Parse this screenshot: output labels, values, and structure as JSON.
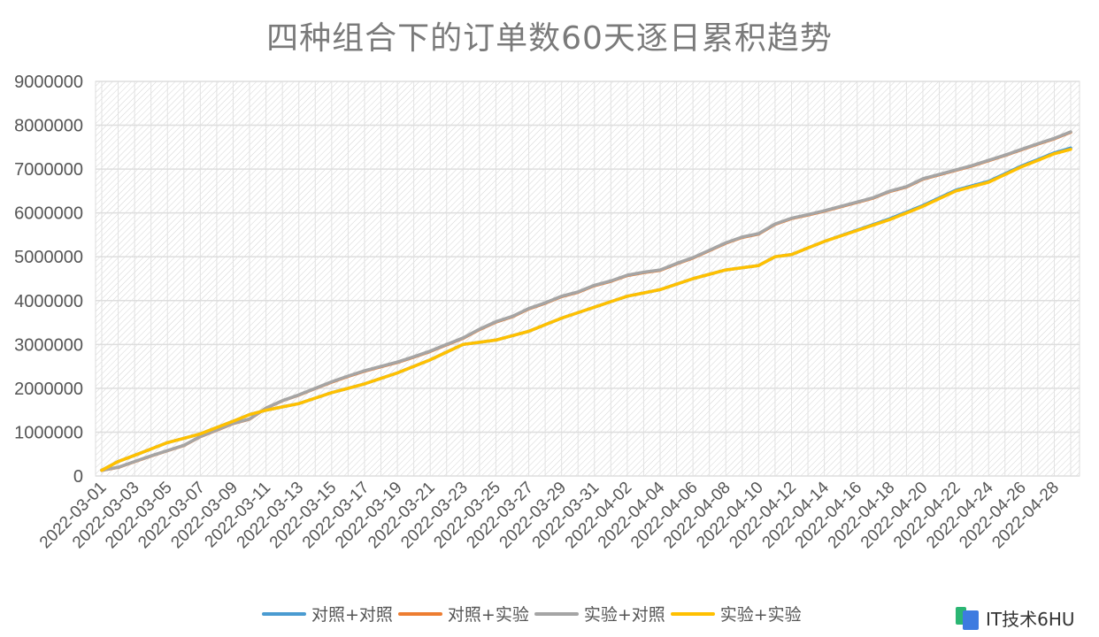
{
  "chart_data": {
    "type": "line",
    "title": "四种组合下的订单数60天逐日累积趋势",
    "xlabel": "",
    "ylabel": "",
    "ylim": [
      0,
      9000000
    ],
    "yticks": [
      "0",
      "1000000",
      "2000000",
      "3000000",
      "4000000",
      "5000000",
      "6000000",
      "7000000",
      "8000000",
      "9000000"
    ],
    "grid": true,
    "legend_position": "bottom",
    "x": [
      "2022-03-01",
      "2022-03-02",
      "2022-03-03",
      "2022-03-04",
      "2022-03-05",
      "2022-03-06",
      "2022-03-07",
      "2022-03-08",
      "2022-03-09",
      "2022-03-10",
      "2022-03-11",
      "2022-03-12",
      "2022-03-13",
      "2022-03-14",
      "2022-03-15",
      "2022-03-16",
      "2022-03-17",
      "2022-03-18",
      "2022-03-19",
      "2022-03-20",
      "2022-03-21",
      "2022-03-22",
      "2022-03-23",
      "2022-03-24",
      "2022-03-25",
      "2022-03-26",
      "2022-03-27",
      "2022-03-28",
      "2022-03-29",
      "2022-03-30",
      "2022-03-31",
      "2022-04-01",
      "2022-04-02",
      "2022-04-03",
      "2022-04-04",
      "2022-04-05",
      "2022-04-06",
      "2022-04-07",
      "2022-04-08",
      "2022-04-09",
      "2022-04-10",
      "2022-04-11",
      "2022-04-12",
      "2022-04-13",
      "2022-04-14",
      "2022-04-15",
      "2022-04-16",
      "2022-04-17",
      "2022-04-18",
      "2022-04-19",
      "2022-04-20",
      "2022-04-21",
      "2022-04-22",
      "2022-04-23",
      "2022-04-24",
      "2022-04-25",
      "2022-04-26",
      "2022-04-27",
      "2022-04-28",
      "2022-04-29"
    ],
    "series": [
      {
        "name": "对照+对照",
        "color": "#4a9bd1",
        "values": [
          130000,
          330000,
          470000,
          615000,
          760000,
          860000,
          960000,
          1105000,
          1250000,
          1400000,
          1500000,
          1575000,
          1650000,
          1775000,
          1900000,
          2000000,
          2100000,
          2225000,
          2350000,
          2500000,
          2650000,
          2825000,
          3000000,
          3050000,
          3100000,
          3200000,
          3300000,
          3450000,
          3600000,
          3725000,
          3850000,
          3975000,
          4100000,
          4175000,
          4250000,
          4375000,
          4500000,
          4600000,
          4700000,
          4750000,
          4800000,
          5000000,
          5050000,
          5200000,
          5350000,
          5480000,
          5610000,
          5740000,
          5870000,
          6020000,
          6170000,
          6345000,
          6520000,
          6620000,
          6720000,
          6895000,
          7070000,
          7220000,
          7370000,
          7480000
        ]
      },
      {
        "name": "对照+实验",
        "color": "#ed7d31",
        "values": [
          130000,
          195000,
          325000,
          455000,
          575000,
          695000,
          895000,
          1045000,
          1195000,
          1295000,
          1545000,
          1715000,
          1845000,
          1995000,
          2140000,
          2270000,
          2390000,
          2490000,
          2590000,
          2710000,
          2840000,
          2990000,
          3140000,
          3340000,
          3510000,
          3630000,
          3810000,
          3940000,
          4090000,
          4190000,
          4340000,
          4440000,
          4570000,
          4640000,
          4690000,
          4840000,
          4970000,
          5140000,
          5310000,
          5440000,
          5520000,
          5740000,
          5870000,
          5950000,
          6040000,
          6140000,
          6240000,
          6340000,
          6490000,
          6590000,
          6770000,
          6870000,
          6970000,
          7070000,
          7190000,
          7310000,
          7440000,
          7570000,
          7690000,
          7840000
        ]
      },
      {
        "name": "实验+对照",
        "color": "#a5a5a5",
        "values": [
          130000,
          200000,
          330000,
          460000,
          580000,
          700000,
          900000,
          1050000,
          1200000,
          1300000,
          1550000,
          1720000,
          1850000,
          2000000,
          2150000,
          2280000,
          2400000,
          2500000,
          2600000,
          2720000,
          2850000,
          3000000,
          3150000,
          3350000,
          3520000,
          3640000,
          3820000,
          3950000,
          4100000,
          4200000,
          4350000,
          4450000,
          4580000,
          4650000,
          4700000,
          4850000,
          4980000,
          5150000,
          5320000,
          5450000,
          5530000,
          5750000,
          5880000,
          5960000,
          6050000,
          6150000,
          6250000,
          6350000,
          6500000,
          6600000,
          6780000,
          6880000,
          6980000,
          7080000,
          7200000,
          7320000,
          7450000,
          7580000,
          7700000,
          7850000
        ]
      },
      {
        "name": "实验+实验",
        "color": "#ffc000",
        "values": [
          130000,
          330000,
          470000,
          615000,
          760000,
          860000,
          960000,
          1105000,
          1250000,
          1400000,
          1500000,
          1575000,
          1650000,
          1775000,
          1900000,
          2000000,
          2100000,
          2225000,
          2350000,
          2500000,
          2650000,
          2825000,
          3000000,
          3050000,
          3100000,
          3200000,
          3300000,
          3450000,
          3600000,
          3725000,
          3850000,
          3975000,
          4100000,
          4175000,
          4250000,
          4375000,
          4500000,
          4600000,
          4700000,
          4750000,
          4800000,
          5000000,
          5050000,
          5200000,
          5350000,
          5475000,
          5600000,
          5725000,
          5850000,
          6000000,
          6150000,
          6325000,
          6500000,
          6600000,
          6700000,
          6875000,
          7050000,
          7200000,
          7350000,
          7450000
        ]
      }
    ]
  },
  "watermark": {
    "text": "IT技术6HU"
  }
}
